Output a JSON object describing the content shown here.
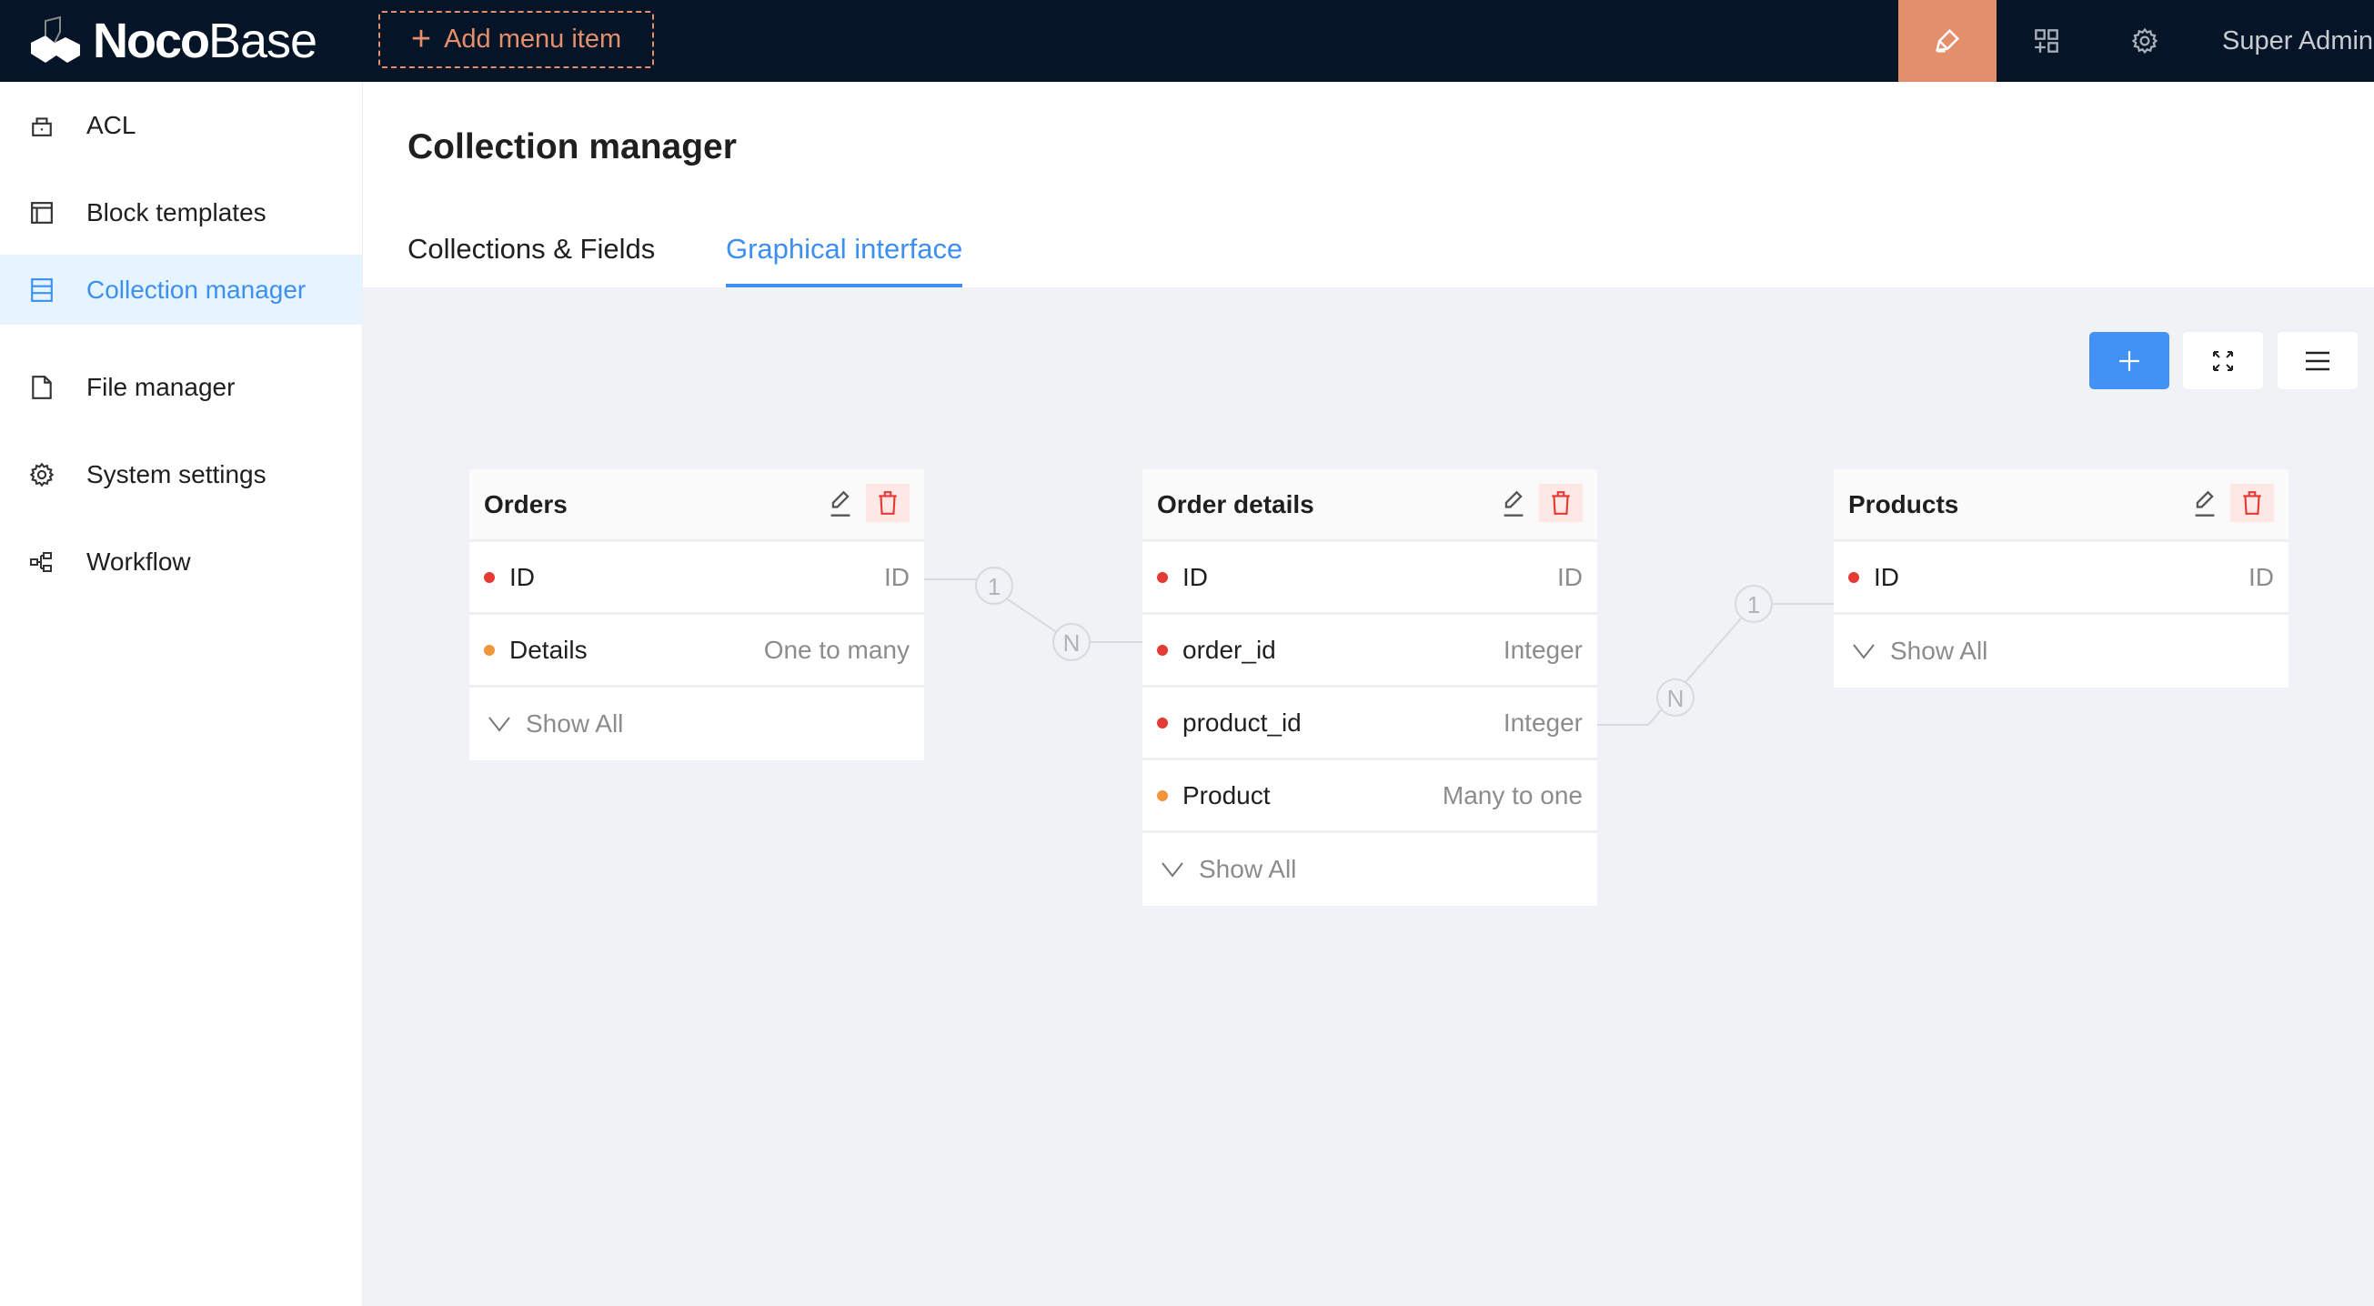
{
  "header": {
    "logo_text_bold": "Noco",
    "logo_text_light": "Base",
    "add_menu_item": "Add menu item",
    "user": "Super Admin",
    "accent": "#e48f6b",
    "bg": "#051427"
  },
  "sidebar": {
    "items": [
      {
        "label": "ACL",
        "icon": "lock-icon"
      },
      {
        "label": "Block templates",
        "icon": "layout-icon"
      },
      {
        "label": "Collection manager",
        "icon": "database-icon",
        "active": true
      },
      {
        "label": "File manager",
        "icon": "file-icon"
      },
      {
        "label": "System settings",
        "icon": "gear-icon"
      },
      {
        "label": "Workflow",
        "icon": "workflow-icon"
      }
    ]
  },
  "page": {
    "title": "Collection manager",
    "tabs": [
      {
        "label": "Collections & Fields"
      },
      {
        "label": "Graphical interface",
        "active": true
      }
    ]
  },
  "collections": [
    {
      "title": "Orders",
      "fields": [
        {
          "name": "ID",
          "type": "ID",
          "color": "#e53935"
        },
        {
          "name": "Details",
          "type": "One to many",
          "color": "#f0953a"
        }
      ],
      "show_all": "Show All"
    },
    {
      "title": "Order details",
      "fields": [
        {
          "name": "ID",
          "type": "ID",
          "color": "#e53935"
        },
        {
          "name": "order_id",
          "type": "Integer",
          "color": "#e53935"
        },
        {
          "name": "product_id",
          "type": "Integer",
          "color": "#e53935"
        },
        {
          "name": "Product",
          "type": "Many to one",
          "color": "#f0953a"
        }
      ],
      "show_all": "Show All"
    },
    {
      "title": "Products",
      "fields": [
        {
          "name": "ID",
          "type": "ID",
          "color": "#e53935"
        }
      ],
      "show_all": "Show All"
    }
  ],
  "relations": [
    {
      "from": "Orders.ID",
      "to": "Order details.order_id",
      "from_label": "1",
      "to_label": "N"
    },
    {
      "from": "Order details.product_id",
      "to": "Products.ID",
      "from_label": "N",
      "to_label": "1"
    }
  ]
}
